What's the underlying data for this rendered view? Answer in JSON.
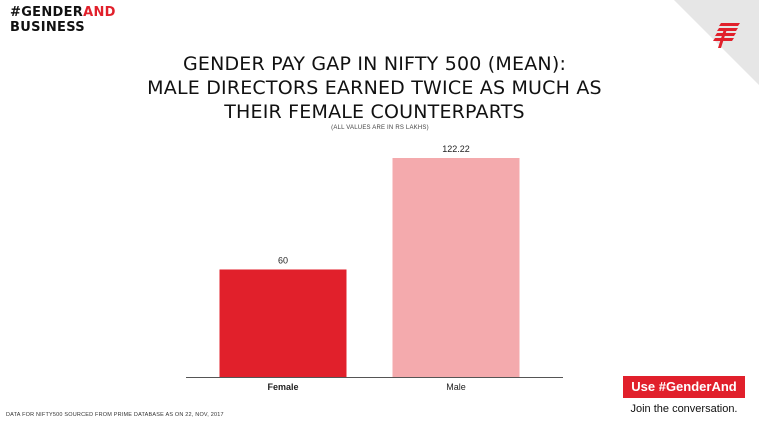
{
  "brand": {
    "hashtag": "#GENDER",
    "hashtag_accent": "AND",
    "line2": "BUSINESS"
  },
  "title": {
    "line1": "GENDER PAY GAP IN NIFTY 500 (MEAN):",
    "line2": "MALE DIRECTORS EARNED TWICE AS MUCH AS",
    "line3": "THEIR FEMALE COUNTERPARTS"
  },
  "subtitle": "(ALL VALUES ARE IN RS LAKHS)",
  "footnote": "DATA FOR NIFTY500 SOURCED FROM PRIME DATABASE AS ON 22, NOV, 2017",
  "cta": {
    "button": "Use #GenderAnd",
    "sub": "Join the conversation."
  },
  "colors": {
    "accent": "#e1202b",
    "female_bar": "#e1202b",
    "male_bar": "#f4aaad",
    "corner": "#e6e6e6"
  },
  "logo_icon": "indian-express-logo-icon",
  "chart_data": {
    "type": "bar",
    "title": "GENDER PAY GAP IN NIFTY 500 (MEAN): MALE DIRECTORS EARNED TWICE AS MUCH AS THEIR FEMALE COUNTERPARTS",
    "subtitle": "(ALL VALUES ARE IN RS LAKHS)",
    "categories": [
      "Female",
      "Male"
    ],
    "values": [
      60,
      122.22
    ],
    "value_labels": [
      "60",
      "122.22"
    ],
    "bar_colors": [
      "#e1202b",
      "#f4aaad"
    ],
    "xlabel": "",
    "ylabel": "",
    "ylim": [
      0,
      135
    ],
    "grid": false,
    "legend": "none"
  }
}
